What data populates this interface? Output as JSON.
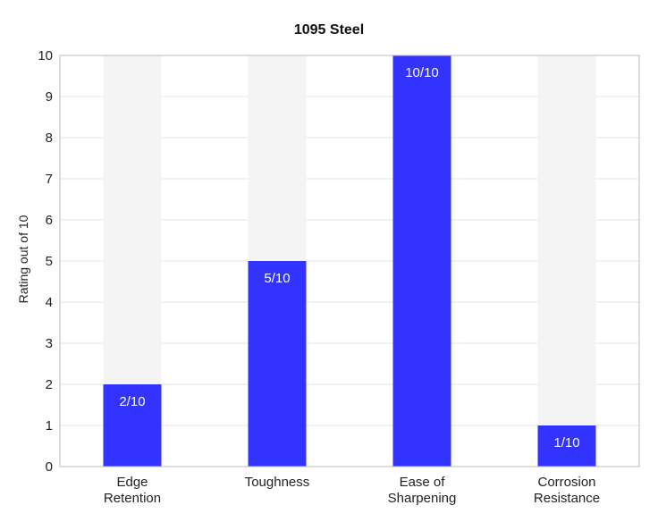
{
  "chart_data": {
    "type": "bar",
    "title": "1095 Steel",
    "ylabel": "Rating out of 10",
    "xlabel": "",
    "ylim": [
      0,
      10
    ],
    "yticks": [
      0,
      1,
      2,
      3,
      4,
      5,
      6,
      7,
      8,
      9,
      10
    ],
    "categories": [
      [
        "Edge",
        "Retention"
      ],
      [
        "Toughness"
      ],
      [
        "Ease of",
        "Sharpening"
      ],
      [
        "Corrosion",
        "Resistance"
      ]
    ],
    "values": [
      2,
      5,
      10,
      1
    ],
    "max_value": 10,
    "data_labels": [
      "2/10",
      "5/10",
      "10/10",
      "1/10"
    ],
    "grid": true,
    "colors": {
      "bar": "#3333ff",
      "track": "#f4f4f4"
    }
  }
}
